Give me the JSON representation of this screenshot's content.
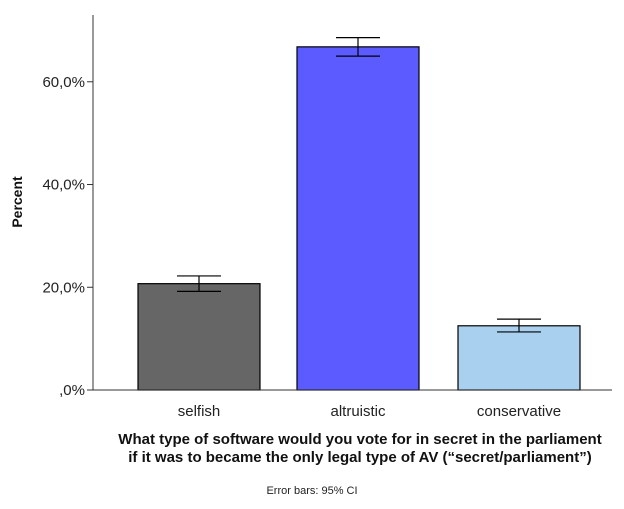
{
  "chart_data": {
    "type": "bar",
    "categories": [
      "selfish",
      "altruistic",
      "conservative"
    ],
    "values": [
      20.7,
      66.8,
      12.5
    ],
    "ci_low": [
      19.2,
      65.0,
      11.3
    ],
    "ci_high": [
      22.2,
      68.6,
      13.8
    ],
    "colors": [
      "#666666",
      "#5b5bff",
      "#a9d0ef"
    ],
    "ylabel": "Percent",
    "xlabel_lines": [
      "What type of software would you vote for in secret in the parliament",
      "if it was to became the only legal type of AV (“secret/parliament”)"
    ],
    "ylim": [
      0,
      73
    ],
    "yticks": [
      0,
      20,
      40,
      60
    ],
    "ytick_labels": [
      ",0%",
      "20,0%",
      "40,0%",
      "60,0%"
    ],
    "footnote": "Error bars: 95% CI",
    "grid": false
  }
}
